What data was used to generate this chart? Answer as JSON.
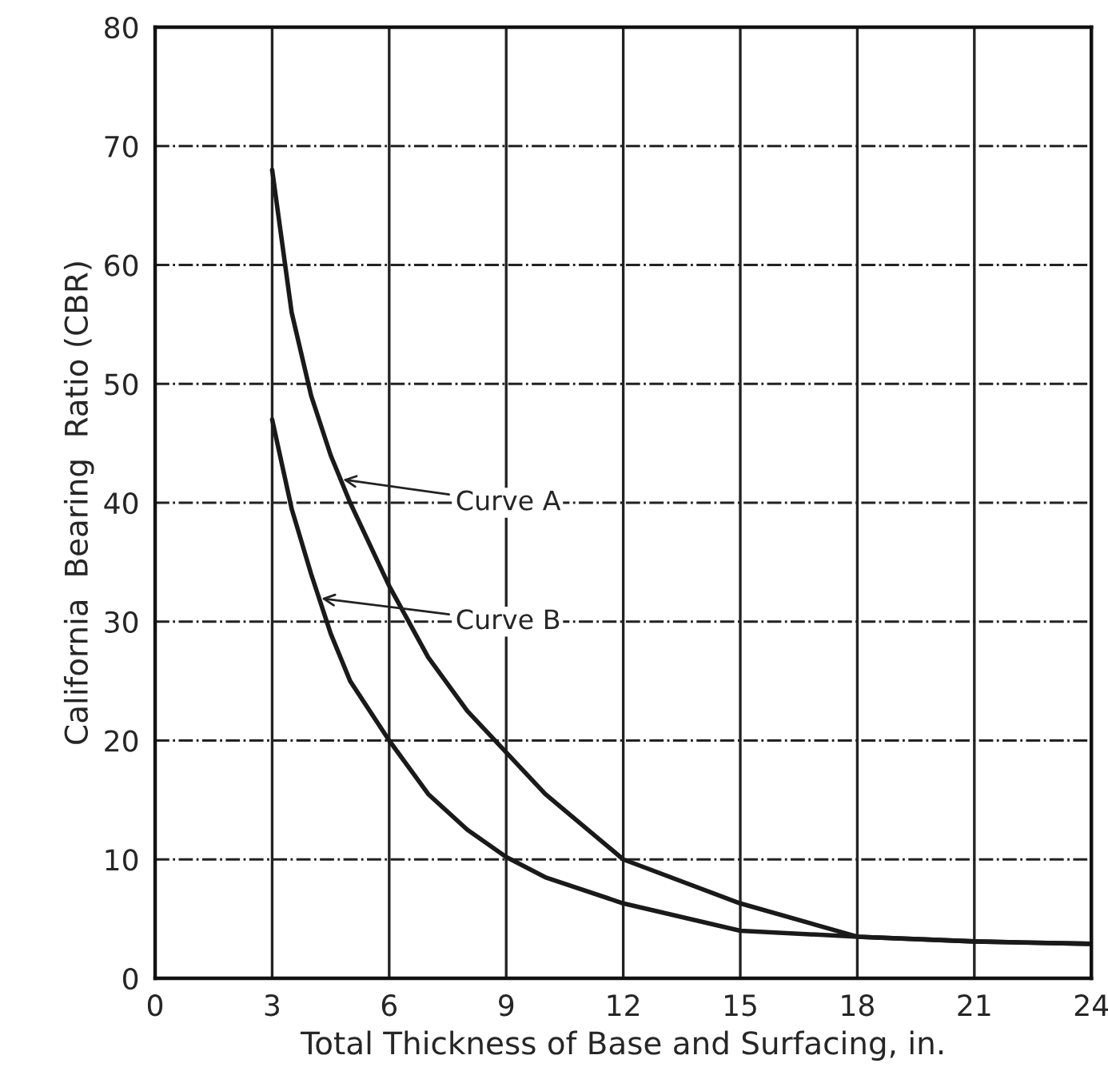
{
  "chart_data": {
    "type": "line",
    "xlabel": "Total Thickness of Base and Surfacing, in.",
    "ylabel": "California  Bearing  Ratio (CBR)",
    "xlim": [
      0,
      24
    ],
    "ylim": [
      0,
      80
    ],
    "xticks": [
      0,
      3,
      6,
      9,
      12,
      15,
      18,
      21,
      24
    ],
    "yticks": [
      0,
      10,
      20,
      30,
      40,
      50,
      60,
      70,
      80
    ],
    "grid": true,
    "line_style": "solid",
    "marker": "none",
    "series": [
      {
        "color": "#1a1a1a",
        "x": [
          3,
          3.5,
          4,
          4.5,
          5,
          6,
          7,
          8,
          9,
          10,
          12,
          15,
          18,
          21,
          24
        ],
        "values": [
          68,
          56,
          49,
          44,
          40,
          33,
          27,
          22.5,
          19,
          15.5,
          10,
          6.3,
          3.5,
          3.1,
          2.9
        ]
      },
      {
        "color": "#1a1a1a",
        "x": [
          3,
          3.5,
          4,
          4.5,
          5,
          6,
          7,
          8,
          9,
          10,
          12,
          15,
          18,
          21,
          24
        ],
        "values": [
          47,
          39.5,
          34,
          29,
          25,
          20,
          15.5,
          12.5,
          10.2,
          8.5,
          6.3,
          4,
          3.5,
          3.1,
          2.9
        ]
      }
    ],
    "annotations": [
      {
        "text": "Curve A",
        "x": 4.7,
        "y": 42
      },
      {
        "text": "Curve B",
        "x": 4.15,
        "y": 32
      }
    ]
  }
}
